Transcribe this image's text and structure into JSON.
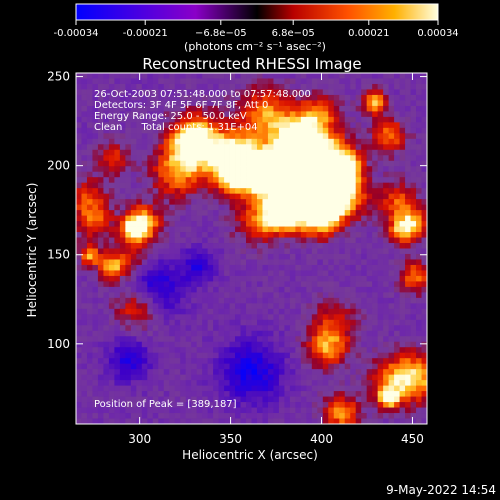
{
  "chart_data": {
    "type": "heatmap",
    "title": "Reconstructed RHESSI Image",
    "xlabel": "Heliocentric X (arcsec)",
    "ylabel": "Heliocentric Y (arcsec)",
    "xlim": [
      265,
      458
    ],
    "ylim": [
      55,
      252
    ],
    "x_ticks": [
      300,
      350,
      400,
      450
    ],
    "y_ticks": [
      100,
      150,
      200,
      250
    ],
    "colorbar": {
      "min": -0.00034,
      "max": 0.00034,
      "tick_values": [
        -0.00034,
        -0.00021,
        -6.8e-05,
        6.8e-05,
        0.00021,
        0.00034
      ],
      "tick_labels": [
        "-0.00034",
        "-0.00021",
        "−6.8e−05",
        "6.8e−05",
        "0.00021",
        "0.00034"
      ],
      "unit_label": "(photons cm⁻² s⁻¹ asec⁻²)"
    },
    "info_lines": [
      "26-Oct-2003 07:51:48.000 to 07:57:48.000",
      "Detectors: 3F 4F 5F 6F 7F 8F, Att 0",
      "Energy Range: 25.0 - 50.0 keV",
      "Clean      Total counts: 1.31E+04"
    ],
    "peak_label": "Position of Peak = [389,187]",
    "peak_position": [
      389,
      187
    ]
  },
  "footer": {
    "timestamp": "9-May-2022 14:54"
  },
  "colors": {
    "background": "#000000",
    "foreground": "#ffffff"
  }
}
